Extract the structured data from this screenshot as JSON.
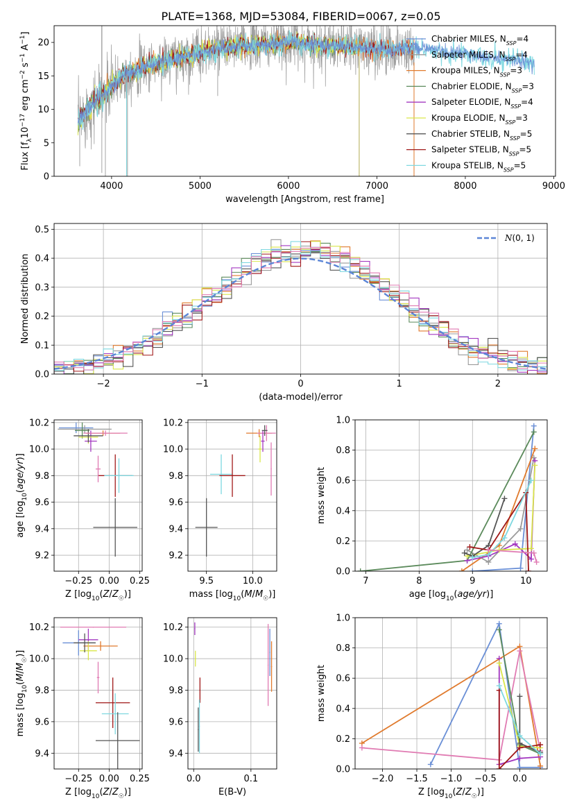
{
  "figure": {
    "title": "PLATE=1368, MJD=53084, FIBERID=0067, z=0.05"
  },
  "colors": {
    "Chabrier MILES": "#6a8fd6",
    "Salpeter MILES": "#9a9a9a",
    "Kroupa MILES": "#e07a2d",
    "Chabrier ELODIE": "#5b8a5b",
    "Salpeter ELODIE": "#a338c0",
    "Kroupa ELODIE": "#d9e64a",
    "Chabrier STELIB": "#555555",
    "Salpeter STELIB": "#a01818",
    "Kroupa STELIB": "#7ed8e0",
    "pink": "#e07ab2",
    "normal": "#5b85d6"
  },
  "chart_data": [
    {
      "type": "line",
      "title": "PLATE=1368, MJD=53084, FIBERID=0067, z=0.05",
      "xlabel": "wavelength [Angstrom, rest frame]",
      "ylabel": "Flux [f_λ 10^-17 erg cm^-2 s^-1 A^-1]",
      "xlim": [
        3350,
        9020
      ],
      "ylim": [
        0,
        22.5
      ],
      "xticks": [
        4000,
        5000,
        6000,
        7000,
        8000,
        9000
      ],
      "yticks": [
        0,
        5,
        10,
        15,
        20
      ],
      "grid": false,
      "legend_position": "top-right",
      "legend": [
        {
          "name": "Chabrier MILES",
          "sub": "SSP",
          "n": "4"
        },
        {
          "name": "Salpeter MILES",
          "sub": "SSP",
          "n": "4"
        },
        {
          "name": "Kroupa MILES",
          "sub": "SSP",
          "n": "3"
        },
        {
          "name": "Chabrier ELODIE",
          "sub": "SSP",
          "n": "3"
        },
        {
          "name": "Salpeter ELODIE",
          "sub": "SSP",
          "n": "4"
        },
        {
          "name": "Kroupa ELODIE",
          "sub": "SSP",
          "n": "3"
        },
        {
          "name": "Chabrier STELIB",
          "sub": "SSP",
          "n": "5"
        },
        {
          "name": "Salpeter STELIB",
          "sub": "SSP",
          "n": "5"
        },
        {
          "name": "Kroupa STELIB",
          "sub": "SSP",
          "n": "5"
        }
      ],
      "spectrum_envelope": {
        "x": [
          3620,
          3700,
          3800,
          3900,
          4000,
          4200,
          4400,
          4600,
          4800,
          5000,
          5200,
          5400,
          5600,
          5800,
          6000,
          6200,
          6400,
          6600,
          6800,
          7000,
          7200,
          7400,
          7600,
          7800,
          8000,
          8200,
          8400,
          8600,
          8800
        ],
        "y": [
          8,
          9.5,
          11,
          12,
          13.5,
          15.5,
          16.5,
          17.2,
          17.8,
          18.5,
          19,
          19.5,
          19.5,
          19.7,
          20,
          19.8,
          19.5,
          19.5,
          19.3,
          19,
          19,
          19.2,
          19,
          18.5,
          18.2,
          17.8,
          17.5,
          17.2,
          16.8
        ]
      }
    },
    {
      "type": "line",
      "xlabel": "(data-model)/error",
      "ylabel": "Normed distribution",
      "xlim": [
        -2.5,
        2.5
      ],
      "ylim": [
        0,
        0.52
      ],
      "xticks": [
        -2,
        -1,
        0,
        1,
        2
      ],
      "yticks": [
        0.0,
        0.1,
        0.2,
        0.3,
        0.4,
        0.5
      ],
      "grid": true,
      "legend_position": "top-right",
      "legend": [
        {
          "name": "N(0,1)"
        }
      ],
      "series": [
        {
          "name": "N(0,1)",
          "mean": 0,
          "sigma": 1
        }
      ]
    },
    {
      "type": "scatter",
      "xlabel": "Z [log10(Z/Z☉)]",
      "ylabel": "age [log10(age/yr)]",
      "xlim": [
        -0.45,
        0.27
      ],
      "ylim": [
        9.08,
        10.22
      ],
      "xticks": [
        -0.25,
        0.0,
        0.25
      ],
      "yticks": [
        9.2,
        9.4,
        9.6,
        9.8,
        10.0,
        10.2
      ],
      "grid": true,
      "points": [
        {
          "series": "Chabrier MILES",
          "x": -0.27,
          "y": 10.16,
          "xerr": 0.14,
          "yerr": 0.04
        },
        {
          "series": "Salpeter MILES",
          "x": -0.2,
          "y": 10.15,
          "xerr": 0.22,
          "yerr": 0.03
        },
        {
          "series": "Kroupa MILES",
          "x": -0.05,
          "y": 10.12,
          "xerr": 0.14,
          "yerr": 0.02
        },
        {
          "series": "Chabrier ELODIE",
          "x": -0.22,
          "y": 10.14,
          "xerr": 0.06,
          "yerr": 0.06
        },
        {
          "series": "Salpeter ELODIE",
          "x": -0.15,
          "y": 10.06,
          "xerr": 0.05,
          "yerr": 0.08
        },
        {
          "series": "Kroupa ELODIE",
          "x": -0.17,
          "y": 10.09,
          "xerr": 0.08,
          "yerr": 0.05
        },
        {
          "series": "Chabrier STELIB",
          "x": -0.17,
          "y": 10.1,
          "xerr": 0.12,
          "yerr": 0.05
        },
        {
          "series": "pink",
          "x": -0.03,
          "y": 10.12,
          "xerr": 0.18,
          "yerr": 0.02
        },
        {
          "series": "Salpeter STELIB",
          "x": 0.05,
          "y": 9.8,
          "xerr": 0.14,
          "yerr": 0.16
        },
        {
          "series": "Kroupa STELIB",
          "x": 0.08,
          "y": 9.8,
          "xerr": 0.12,
          "yerr": 0.13
        },
        {
          "series": "Chabrier STELIB",
          "x": 0.05,
          "y": 9.41,
          "xerr": 0.18,
          "yerr": 0.22
        },
        {
          "series": "pink",
          "x": -0.09,
          "y": 9.85,
          "xerr": 0.02,
          "yerr": 0.1
        }
      ]
    },
    {
      "type": "scatter",
      "xlabel": "mass [log10(M/M☉)]",
      "xlim": [
        9.3,
        10.26
      ],
      "ylim": [
        9.08,
        10.22
      ],
      "xticks": [
        9.5,
        10.0
      ],
      "yticks": [
        9.2,
        9.4,
        9.6,
        9.8,
        10.0,
        10.2
      ],
      "grid": true,
      "points": [
        {
          "series": "Chabrier STELIB",
          "x": 9.5,
          "y": 9.41,
          "xerr": 0.12,
          "yerr": 0.22
        },
        {
          "series": "Kroupa STELIB",
          "x": 9.66,
          "y": 9.81,
          "xerr": 0.12,
          "yerr": 0.15
        },
        {
          "series": "Salpeter STELIB",
          "x": 9.78,
          "y": 9.8,
          "xerr": 0.14,
          "yerr": 0.16
        },
        {
          "series": "Kroupa MILES",
          "x": 10.07,
          "y": 10.12,
          "xerr": 0.14,
          "yerr": 0.03
        },
        {
          "series": "pink",
          "x": 10.15,
          "y": 10.12,
          "xerr": 0.1,
          "yerr": 0.06
        },
        {
          "series": "Salpeter ELODIE",
          "x": 10.11,
          "y": 10.06,
          "xerr": 0.02,
          "yerr": 0.08
        },
        {
          "series": "Kroupa ELODIE",
          "x": 10.08,
          "y": 10.0,
          "xerr": 0.02,
          "yerr": 0.1
        },
        {
          "series": "Chabrier STELIB",
          "x": 10.13,
          "y": 10.14,
          "xerr": 0.03,
          "yerr": 0.04
        },
        {
          "series": "pink",
          "x": 10.2,
          "y": 9.85,
          "xerr": 0.0,
          "yerr": 0.2
        }
      ]
    },
    {
      "type": "line",
      "xlabel": "age [log10(age/yr)]",
      "ylabel": "mass weight",
      "xlim": [
        6.8,
        10.4
      ],
      "ylim": [
        0,
        1
      ],
      "xticks": [
        7,
        8,
        9,
        10
      ],
      "yticks": [
        0.0,
        0.2,
        0.4,
        0.6,
        0.8,
        1.0
      ],
      "grid": true,
      "series": [
        {
          "name": "Chabrier MILES",
          "x": [
            9.0,
            9.9,
            10.15
          ],
          "y": [
            0.0,
            0.02,
            0.96
          ]
        },
        {
          "name": "Salpeter MILES",
          "x": [
            8.9,
            9.3,
            9.9,
            10.15
          ],
          "y": [
            0.14,
            0.06,
            0.28,
            0.75
          ]
        },
        {
          "name": "Kroupa MILES",
          "x": [
            8.8,
            9.5,
            10.17
          ],
          "y": [
            0.0,
            0.17,
            0.81
          ]
        },
        {
          "name": "Chabrier ELODIE",
          "x": [
            6.9,
            8.9,
            10.15
          ],
          "y": [
            0.0,
            0.07,
            0.92
          ]
        },
        {
          "name": "Salpeter ELODIE",
          "x": [
            8.9,
            9.3,
            9.8,
            10.1,
            10.17
          ],
          "y": [
            0.07,
            0.1,
            0.18,
            0.08,
            0.73
          ]
        },
        {
          "name": "Kroupa ELODIE",
          "x": [
            8.9,
            9.5,
            10.1,
            10.17
          ],
          "y": [
            0.1,
            0.14,
            0.15,
            0.7
          ]
        },
        {
          "name": "Chabrier STELIB",
          "x": [
            8.85,
            9.0,
            9.3,
            9.6
          ],
          "y": [
            0.12,
            0.1,
            0.17,
            0.48
          ]
        },
        {
          "name": "Salpeter STELIB",
          "x": [
            8.95,
            9.3,
            10.0,
            10.05
          ],
          "y": [
            0.16,
            0.14,
            0.52,
            0.0
          ]
        },
        {
          "name": "Kroupa STELIB",
          "x": [
            9.0,
            9.3,
            9.6,
            10.1
          ],
          "y": [
            0.09,
            0.11,
            0.22,
            0.6
          ]
        },
        {
          "name": "pink",
          "x": [
            9.3,
            10.15,
            10.2
          ],
          "y": [
            0.14,
            0.12,
            0.06
          ]
        }
      ]
    },
    {
      "type": "scatter",
      "xlabel": "Z [log10(Z/Z☉)]",
      "ylabel": "mass [log10(M/M☉)]",
      "xlim": [
        -0.45,
        0.27
      ],
      "ylim": [
        9.3,
        10.26
      ],
      "xticks": [
        -0.25,
        0.0,
        0.25
      ],
      "yticks": [
        9.4,
        9.6,
        9.8,
        10.0,
        10.2
      ],
      "grid": true,
      "points": [
        {
          "series": "pink",
          "x": -0.13,
          "y": 10.2,
          "xerr": 0.27,
          "yerr": 0.0
        },
        {
          "series": "Chabrier MILES",
          "x": -0.25,
          "y": 10.1,
          "xerr": 0.13,
          "yerr": 0.08
        },
        {
          "series": "Salpeter ELODIE",
          "x": -0.17,
          "y": 10.12,
          "xerr": 0.08,
          "yerr": 0.07
        },
        {
          "series": "Kroupa MILES",
          "x": -0.07,
          "y": 10.08,
          "xerr": 0.14,
          "yerr": 0.03
        },
        {
          "series": "Kroupa ELODIE",
          "x": -0.17,
          "y": 10.05,
          "xerr": 0.07,
          "yerr": 0.06
        },
        {
          "series": "Chabrier STELIB",
          "x": -0.2,
          "y": 10.1,
          "xerr": 0.09,
          "yerr": 0.06
        },
        {
          "series": "Salpeter STELIB",
          "x": 0.03,
          "y": 9.72,
          "xerr": 0.14,
          "yerr": 0.16
        },
        {
          "series": "Kroupa STELIB",
          "x": 0.05,
          "y": 9.65,
          "xerr": 0.11,
          "yerr": 0.13
        },
        {
          "series": "Chabrier STELIB",
          "x": 0.07,
          "y": 9.48,
          "xerr": 0.18,
          "yerr": 0.18
        },
        {
          "series": "pink",
          "x": -0.09,
          "y": 9.88,
          "xerr": 0.01,
          "yerr": 0.1
        }
      ]
    },
    {
      "type": "scatter",
      "xlabel": "E(B-V)",
      "xlim": [
        -0.01,
        0.145
      ],
      "ylim": [
        9.3,
        10.26
      ],
      "xticks": [
        0.0,
        0.1
      ],
      "yticks": [
        9.4,
        9.6,
        9.8,
        10.0,
        10.2
      ],
      "grid": true,
      "points": [
        {
          "series": "Salpeter ELODIE",
          "x": 0.002,
          "y": 10.19,
          "yerr": 0.04
        },
        {
          "series": "Kroupa ELODIE",
          "x": 0.003,
          "y": 10.0,
          "yerr": 0.05
        },
        {
          "series": "Salpeter STELIB",
          "x": 0.011,
          "y": 9.8,
          "yerr": 0.08
        },
        {
          "series": "Chabrier STELIB",
          "x": 0.008,
          "y": 9.55,
          "yerr": 0.14
        },
        {
          "series": "Kroupa STELIB",
          "x": 0.01,
          "y": 9.57,
          "yerr": 0.17
        },
        {
          "series": "pink",
          "x": 0.13,
          "y": 9.96,
          "yerr": 0.26
        },
        {
          "series": "Chabrier MILES",
          "x": 0.133,
          "y": 10.04,
          "yerr": 0.15
        },
        {
          "series": "Kroupa MILES",
          "x": 0.136,
          "y": 9.95,
          "yerr": 0.16
        }
      ]
    },
    {
      "type": "line",
      "xlabel": "Z [log10(Z/Z☉)]",
      "ylabel": "mass weight",
      "xlim": [
        -2.4,
        0.4
      ],
      "ylim": [
        0,
        1
      ],
      "xticks": [
        -2.0,
        -1.5,
        -1.0,
        -0.5,
        0.0
      ],
      "yticks": [
        0.0,
        0.2,
        0.4,
        0.6,
        0.8,
        1.0
      ],
      "grid": true,
      "series": [
        {
          "name": "Chabrier MILES",
          "x": [
            -1.3,
            -0.3,
            0.0,
            0.3
          ],
          "y": [
            0.03,
            0.96,
            0.01,
            0.01
          ]
        },
        {
          "name": "Kroupa MILES",
          "x": [
            -2.3,
            0.0,
            0.3
          ],
          "y": [
            0.17,
            0.81,
            0.02
          ]
        },
        {
          "name": "pink",
          "x": [
            -2.3,
            -0.3,
            0.0,
            0.3
          ],
          "y": [
            0.14,
            0.06,
            0.78,
            0.12
          ]
        },
        {
          "name": "Chabrier ELODIE",
          "x": [
            -0.3,
            0.0,
            0.3
          ],
          "y": [
            0.92,
            0.16,
            0.1
          ]
        },
        {
          "name": "Salpeter ELODIE",
          "x": [
            -0.3,
            -0.3,
            0.0,
            0.3
          ],
          "y": [
            0.73,
            0.03,
            0.07,
            0.08
          ]
        },
        {
          "name": "Kroupa ELODIE",
          "x": [
            -0.3,
            0.0,
            0.3
          ],
          "y": [
            0.7,
            0.15,
            0.14
          ]
        },
        {
          "name": "Chabrier STELIB",
          "x": [
            0.0,
            0.0,
            0.3
          ],
          "y": [
            0.48,
            0.17,
            0.11
          ]
        },
        {
          "name": "Salpeter STELIB",
          "x": [
            -0.3,
            -0.3,
            0.0,
            0.3
          ],
          "y": [
            0.52,
            0.0,
            0.14,
            0.16
          ]
        },
        {
          "name": "Kroupa STELIB",
          "x": [
            -0.3,
            0.0,
            0.3
          ],
          "y": [
            0.55,
            0.22,
            0.1
          ]
        }
      ]
    }
  ]
}
